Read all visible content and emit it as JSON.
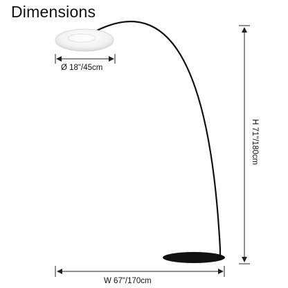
{
  "title": "Dimensions",
  "dimensions": {
    "shade_diameter": "Ø 18\"/45cm",
    "width": "W 67\"/170cm",
    "height": "H 71\"/180cm"
  },
  "colors": {
    "lamp_body": "#111111",
    "shade": "#f4f4f4",
    "dimension_lines": "#222222"
  }
}
